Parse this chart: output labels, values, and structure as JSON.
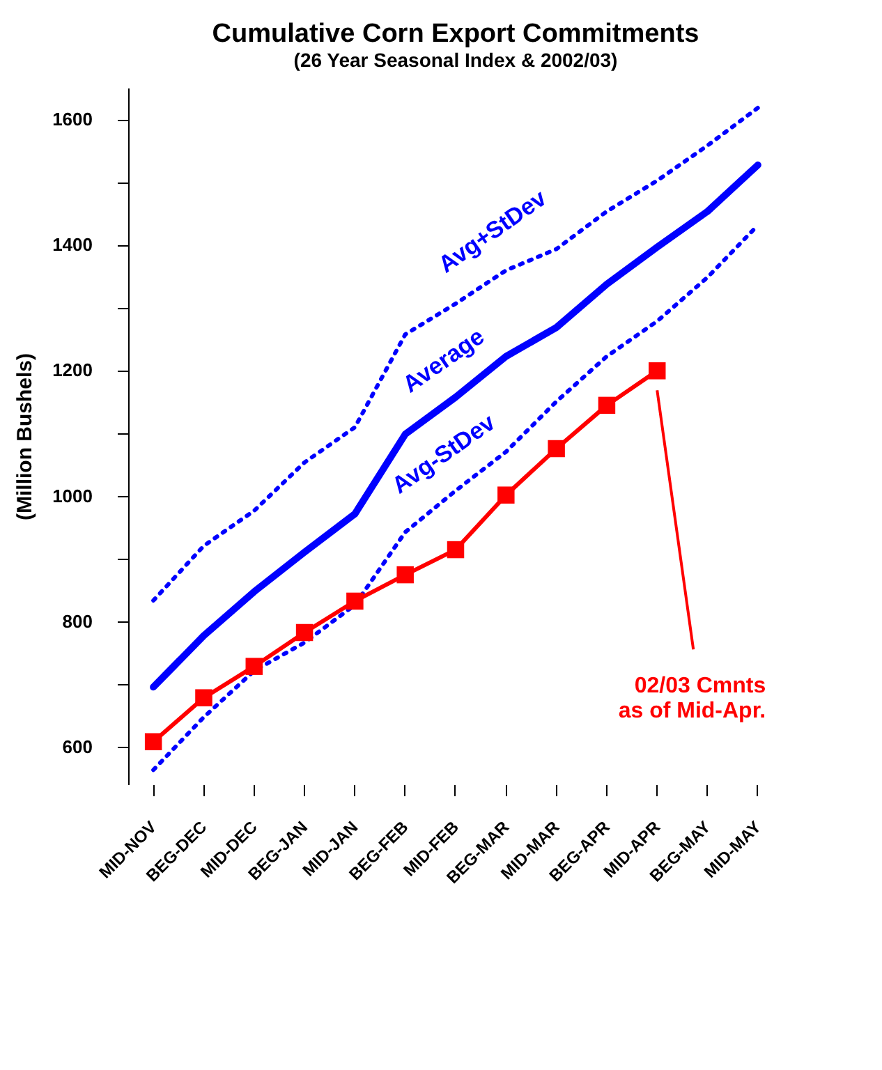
{
  "chart_data": {
    "type": "line",
    "title": "Cumulative Corn Export Commitments",
    "subtitle": "(26 Year Seasonal Index & 2002/03)",
    "ylabel": "(Million Bushels)",
    "categories": [
      "MID-NOV",
      "BEG-DEC",
      "MID-DEC",
      "BEG-JAN",
      "MID-JAN",
      "BEG-FEB",
      "MID-FEB",
      "BEG-MAR",
      "MID-MAR",
      "BEG-APR",
      "MID-APR",
      "BEG-MAY",
      "MID-MAY"
    ],
    "series": [
      {
        "name": "Avg+StDev",
        "color": "#0000ff",
        "line_style": "dotted",
        "marker": "none",
        "values": [
          833,
          920,
          976,
          1053,
          1109,
          1257,
          1306,
          1359,
          1393,
          1453,
          1502,
          1558,
          1618
        ]
      },
      {
        "name": "Average",
        "color": "#0000ff",
        "line_style": "solid",
        "marker": "none",
        "values": [
          695,
          777,
          847,
          910,
          971,
          1098,
          1157,
          1222,
          1268,
          1337,
          1396,
          1453,
          1527
        ]
      },
      {
        "name": "Avg-StDev",
        "color": "#0000ff",
        "line_style": "dotted",
        "marker": "none",
        "values": [
          563,
          647,
          721,
          766,
          826,
          942,
          1008,
          1070,
          1150,
          1222,
          1278,
          1348,
          1431
        ]
      },
      {
        "color": "#ff0000",
        "line_style": "solid",
        "marker": "square",
        "values": [
          608,
          678,
          728,
          782,
          832,
          874,
          914,
          1001,
          1075,
          1144,
          1199,
          null,
          null
        ]
      }
    ],
    "ylim": [
      540,
      1650
    ],
    "yticks": [
      600,
      {
        "value": 700,
        "label": null
      },
      800,
      {
        "value": 900,
        "label": null
      },
      1000,
      {
        "value": 1100,
        "label": null
      },
      1200,
      {
        "value": 1300,
        "label": null
      },
      1400,
      {
        "value": 1500,
        "label": null
      },
      1600
    ],
    "annotations": [
      "02/03 Cmnts\nas of Mid-Apr."
    ],
    "grid": false
  }
}
